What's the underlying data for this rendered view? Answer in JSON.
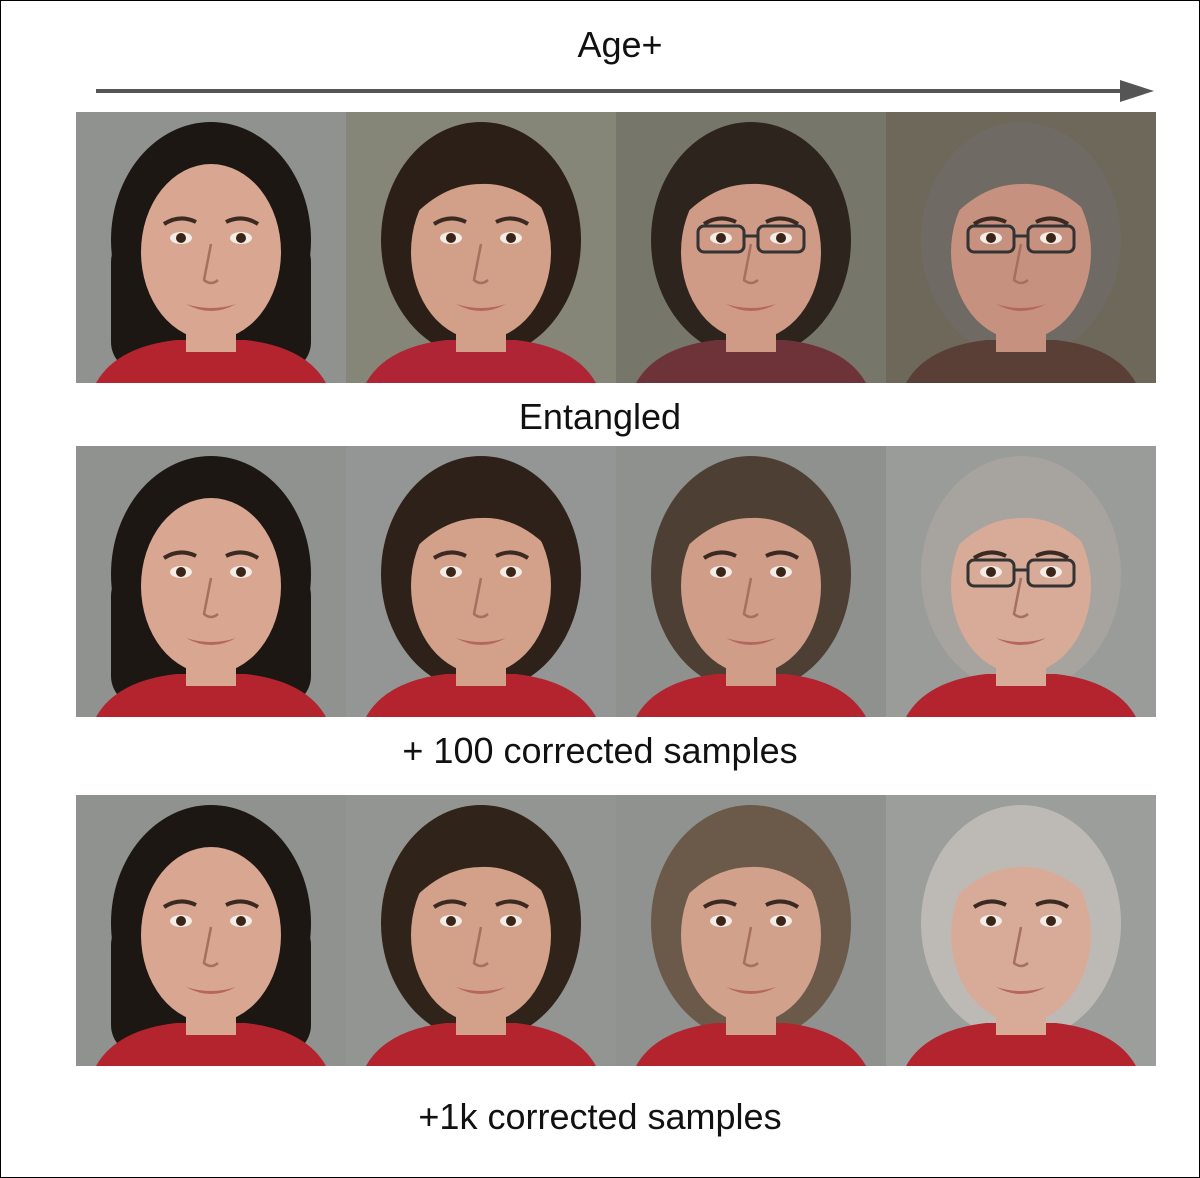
{
  "header": {
    "axis_label": "Age+"
  },
  "rows": [
    {
      "label": "Entangled",
      "faces": [
        {
          "hair": "#1d1714",
          "glasses": false,
          "bg": "#8f928f",
          "shirt": "#b3242e",
          "skin": "#d9a791"
        },
        {
          "hair": "#2b1f18",
          "glasses": false,
          "bg": "#858677",
          "shirt": "#b02535",
          "skin": "#d2a088"
        },
        {
          "hair": "#2c241d",
          "glasses": true,
          "bg": "#77766a",
          "shirt": "#6e3338",
          "skin": "#cf9a86"
        },
        {
          "hair": "#6f6a63",
          "glasses": true,
          "bg": "#6e685a",
          "shirt": "#5a3f36",
          "skin": "#c7917f"
        }
      ]
    },
    {
      "label": "+ 100 corrected samples",
      "faces": [
        {
          "hair": "#1d1714",
          "glasses": false,
          "bg": "#8f928f",
          "shirt": "#b3242e",
          "skin": "#d9a791"
        },
        {
          "hair": "#2d2119",
          "glasses": false,
          "bg": "#939694",
          "shirt": "#b3242e",
          "skin": "#d3a08a"
        },
        {
          "hair": "#4d3f33",
          "glasses": false,
          "bg": "#8e918e",
          "shirt": "#b3242e",
          "skin": "#cf9d88"
        },
        {
          "hair": "#a7a39e",
          "glasses": true,
          "bg": "#9a9c9a",
          "shirt": "#b3242e",
          "skin": "#d8aa98"
        }
      ]
    },
    {
      "label": "+1k corrected samples",
      "faces": [
        {
          "hair": "#1d1714",
          "glasses": false,
          "bg": "#8f928f",
          "shirt": "#b3242e",
          "skin": "#d9a791"
        },
        {
          "hair": "#2f231a",
          "glasses": false,
          "bg": "#929592",
          "shirt": "#b3242e",
          "skin": "#d3a08a"
        },
        {
          "hair": "#6b5a49",
          "glasses": false,
          "bg": "#8f928f",
          "shirt": "#b3242e",
          "skin": "#d1a18c"
        },
        {
          "hair": "#bdbab6",
          "glasses": false,
          "bg": "#9c9e9c",
          "shirt": "#b3242e",
          "skin": "#d8ab99"
        }
      ]
    }
  ]
}
